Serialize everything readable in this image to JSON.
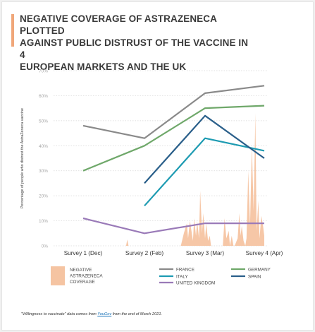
{
  "header": {
    "title_line1": "NEGATIVE COVERAGE OF ASTRAZENECA PLOTTED",
    "title_line2": "AGAINST PUBLIC DISTRUST OF THE VACCINE IN 4",
    "title_line3": "EUROPEAN MARKETS AND THE UK"
  },
  "footnote": {
    "prefix": "\"Willingness to vaccinate\" data comes from ",
    "link": "YouGov",
    "suffix": " from the end of March 2021."
  },
  "colors": {
    "accent": "#f0a77a",
    "coverage": "#f5c4a2",
    "grid": "#d6d6d6",
    "axis_text": "#a8a8a8"
  },
  "chart_data": {
    "type": "line",
    "ylabel": "Percentage of people who distrust the AstraZeneca vaccine",
    "ylim": [
      0,
      70
    ],
    "y_ticks": [
      "0%",
      "10%",
      "20%",
      "30%",
      "40%",
      "50%",
      "60%",
      "70%"
    ],
    "categories": [
      "Survey 1 (Dec)",
      "Survey 2 (Feb)",
      "Survey 3 (Mar)",
      "Survey 4 (Apr)"
    ],
    "grid": true,
    "legend_position": "bottom",
    "series": [
      {
        "name": "FRANCE",
        "color": "#8a8a8a",
        "values": [
          48,
          43,
          61,
          64
        ]
      },
      {
        "name": "GERMANY",
        "color": "#6fa86a",
        "values": [
          30,
          40,
          55,
          56
        ]
      },
      {
        "name": "ITALY",
        "color": "#1d9bb2",
        "values": [
          null,
          16,
          43,
          38
        ]
      },
      {
        "name": "SPAIN",
        "color": "#2a5f8a",
        "values": [
          null,
          25,
          52,
          35
        ]
      },
      {
        "name": "UNITED KINGDOM",
        "color": "#9a7ab8",
        "values": [
          11,
          5,
          9,
          9
        ]
      }
    ],
    "coverage": {
      "name": "NEGATIVE ASTRAZENECA COVERAGE",
      "color": "#f5c4a2",
      "x": [
        0.7,
        0.72,
        0.74,
        1.6,
        1.65,
        1.7,
        1.72,
        1.75,
        1.8,
        1.82,
        1.85,
        1.87,
        1.9,
        1.92,
        1.95,
        1.97,
        2.0,
        2.02,
        2.05,
        2.08,
        2.1,
        2.3,
        2.33,
        2.36,
        2.4,
        2.42,
        2.45,
        2.48,
        2.5,
        2.55,
        2.58,
        2.6,
        2.62,
        2.65,
        2.68,
        2.7,
        2.73,
        2.76,
        2.79,
        2.82,
        2.85,
        2.87,
        2.9,
        2.92,
        2.95,
        2.98,
        3.0,
        3.02,
        3.05,
        3.08,
        3.1,
        3.12,
        3.15,
        3.18,
        3.2,
        3.23,
        3.26,
        3.3
      ],
      "values": [
        0,
        2.5,
        0,
        0,
        5,
        9,
        3,
        10,
        2,
        11,
        4,
        10,
        3,
        22,
        5,
        13,
        3,
        9,
        2,
        4,
        0,
        0,
        11,
        3,
        6,
        0,
        4,
        0,
        0,
        3,
        13,
        4,
        8,
        2,
        0,
        3,
        30,
        8,
        40,
        14,
        53,
        6,
        18,
        3,
        12,
        8,
        4,
        22,
        3,
        9,
        26,
        5,
        10,
        2,
        4,
        6,
        2,
        0
      ]
    }
  }
}
